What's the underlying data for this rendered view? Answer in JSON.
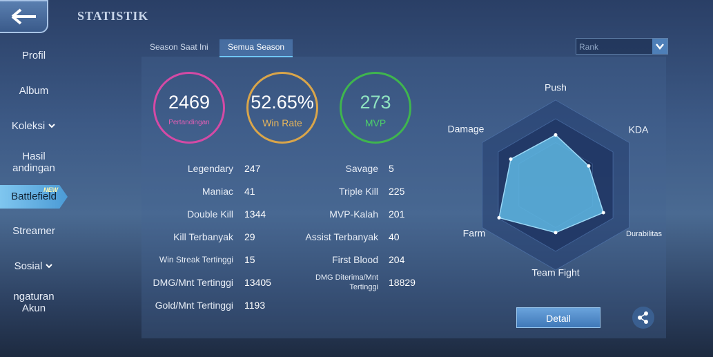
{
  "header": {
    "title": "STATISTIK"
  },
  "sidebar": {
    "items": [
      {
        "lines": [
          "Profil"
        ]
      },
      {
        "lines": [
          "Album"
        ]
      },
      {
        "lines": [
          "Koleksi"
        ],
        "expand": true
      },
      {
        "lines": [
          "Hasil",
          "andingan"
        ]
      },
      {
        "lines": [
          "Battlefield"
        ],
        "selected": true,
        "badge": "NEW"
      },
      {
        "lines": [
          "Streamer"
        ]
      },
      {
        "lines": [
          "Sosial"
        ],
        "expand": true
      },
      {
        "lines": [
          "ngaturan",
          "Akun"
        ]
      }
    ]
  },
  "tabs": [
    {
      "label": "Season Saat Ini"
    },
    {
      "label": "Semua Season",
      "active": true
    }
  ],
  "dropdown": {
    "label": "Rank"
  },
  "circles": [
    {
      "value": "2469",
      "label": "Pertandingan",
      "color": "#d44aa5",
      "sub_color": "#e05fb5"
    },
    {
      "value": "52.65%",
      "label": "Win Rate",
      "color": "#d9a54a",
      "sub_color": "#e8b65a"
    },
    {
      "value": "273",
      "label": "MVP",
      "color": "#3fb54e",
      "sub_color": "#4cd06a"
    }
  ],
  "stats_left": [
    {
      "label": "Legendary",
      "value": 247
    },
    {
      "label": "Maniac",
      "value": 41
    },
    {
      "label": "Double Kill",
      "value": 1344
    },
    {
      "label": "Kill Terbanyak",
      "value": 29
    },
    {
      "label": "Win Streak Tertinggi",
      "value": 15
    },
    {
      "label": "DMG/Mnt Tertinggi",
      "value": 13405
    },
    {
      "label": "Gold/Mnt Tertinggi",
      "value": 1193
    }
  ],
  "stats_right": [
    {
      "label": "Savage",
      "value": 5
    },
    {
      "label": "Triple Kill",
      "value": 225
    },
    {
      "label": "MVP-Kalah",
      "value": 201
    },
    {
      "label": "Assist Terbanyak",
      "value": 40
    },
    {
      "label": "First Blood",
      "value": 204
    },
    {
      "label": "DMG Diterima/Mnt Tertinggi",
      "value": 18829
    }
  ],
  "radar": {
    "axes": [
      "Push",
      "KDA",
      "Durabilitas",
      "Team Fight",
      "Farm",
      "Damage"
    ],
    "values": [
      59,
      45,
      65,
      56,
      77,
      61
    ],
    "rlim": [
      0,
      100
    ],
    "color": "#5fb8e4"
  },
  "button": {
    "label": "Detail"
  }
}
